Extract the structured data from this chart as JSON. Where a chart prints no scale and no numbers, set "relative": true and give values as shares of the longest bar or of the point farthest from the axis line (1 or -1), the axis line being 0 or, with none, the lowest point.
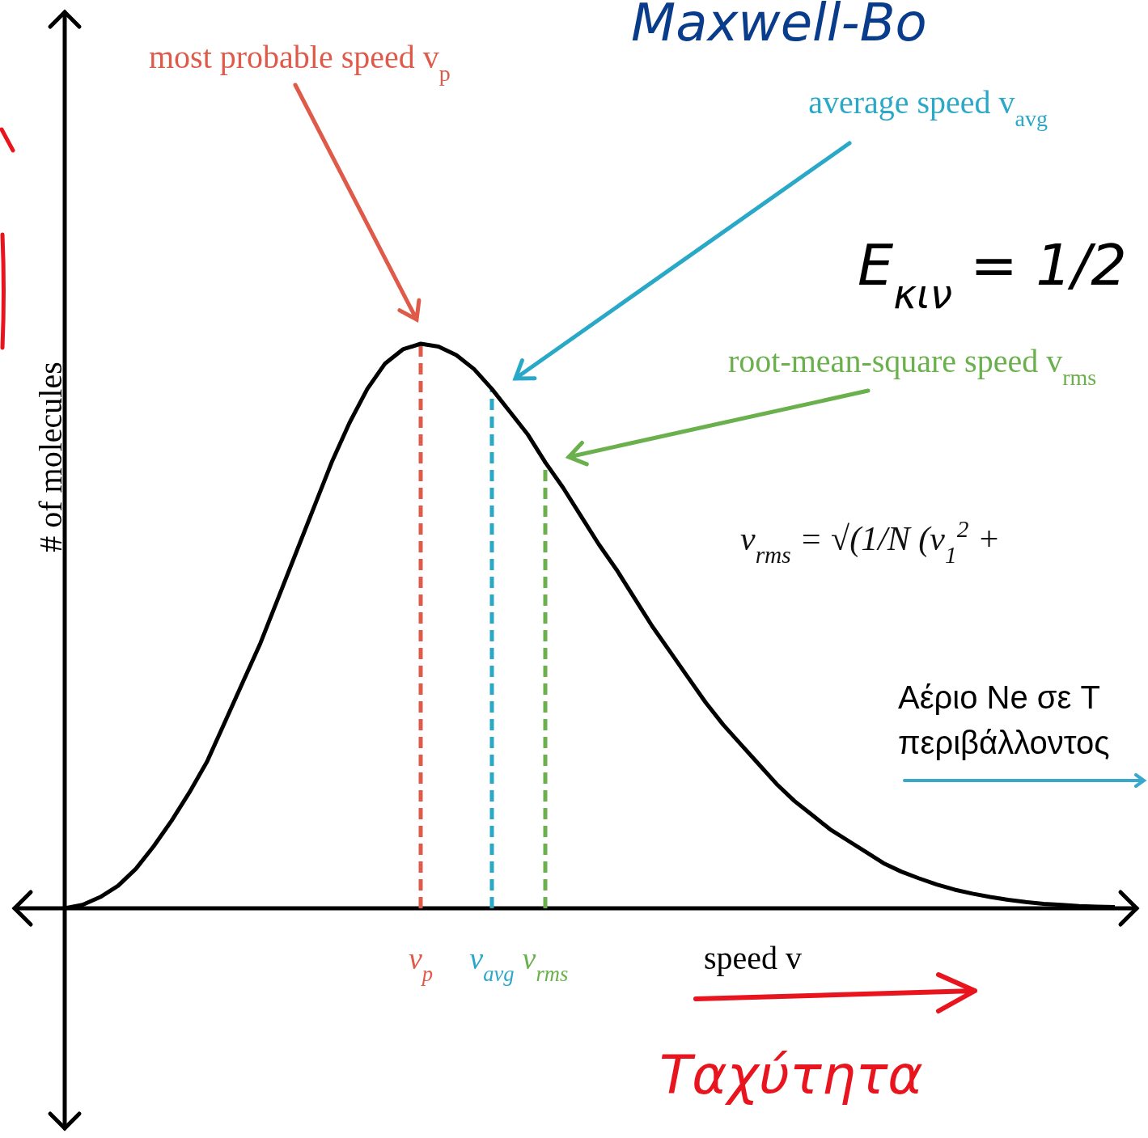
{
  "chart_data": {
    "type": "line",
    "relative": true,
    "title": "Maxwell-Bo",
    "xlabel": "speed v",
    "ylabel": "# of molecules",
    "tick_labels": "x",
    "marker": "none",
    "line_style": "solid",
    "categories": [
      null,
      null,
      null,
      null,
      null,
      null,
      null,
      null,
      null,
      null,
      null,
      null,
      null,
      null,
      null,
      null,
      null,
      null,
      null,
      null,
      "v$_{p}$",
      null,
      null,
      null,
      "v$_{avg}$",
      null,
      null,
      "v$_{rms}$",
      null,
      null,
      null,
      null,
      null,
      null,
      null,
      null,
      null,
      null,
      null,
      null,
      null,
      null,
      null,
      null,
      null,
      null,
      null,
      null,
      null,
      null,
      null,
      null,
      null,
      null,
      null,
      null,
      null,
      null,
      null,
      null
    ],
    "series": [
      {
        "color": "#000000",
        "values": [
          0,
          0.006,
          0.02,
          0.04,
          0.07,
          0.11,
          0.155,
          0.205,
          0.26,
          0.33,
          0.4,
          0.47,
          0.55,
          0.63,
          0.71,
          0.79,
          0.86,
          0.92,
          0.965,
          0.99,
          1,
          0.995,
          0.98,
          0.955,
          0.92,
          0.88,
          0.84,
          0.79,
          0.745,
          0.695,
          0.645,
          0.6,
          0.55,
          0.5,
          0.455,
          0.41,
          0.365,
          0.325,
          0.29,
          0.255,
          0.22,
          0.19,
          0.165,
          0.14,
          0.12,
          0.1,
          0.08,
          0.065,
          0.053,
          0.042,
          0.033,
          0.026,
          0.02,
          0.015,
          0.011,
          0.008,
          0.006,
          0.004,
          0.003,
          0.002
        ]
      }
    ],
    "ref_lines": [
      {
        "axis": "x",
        "value": "v$_{p}$",
        "color": "#e05a4a",
        "line_style": "dashed"
      },
      {
        "axis": "x",
        "value": "v$_{avg}$",
        "color": "#2aa8c8",
        "line_style": "dashed"
      },
      {
        "axis": "x",
        "value": "v$_{rms}$",
        "color": "#6ab04c",
        "line_style": "dashed"
      }
    ],
    "annotations": [
      "most probable speed v$_{p}$",
      "average speed v$_{avg}$",
      "root-mean-square speed v$_{rms}$",
      "E$_{κιν}$ = 1/2",
      "v$_{rms}$ = √(1/N (v$_{1}$$^{2}$ +",
      "Αέριο  Ne σε T",
      "περιβάλλοντος",
      "Ταχύτητα"
    ]
  }
}
